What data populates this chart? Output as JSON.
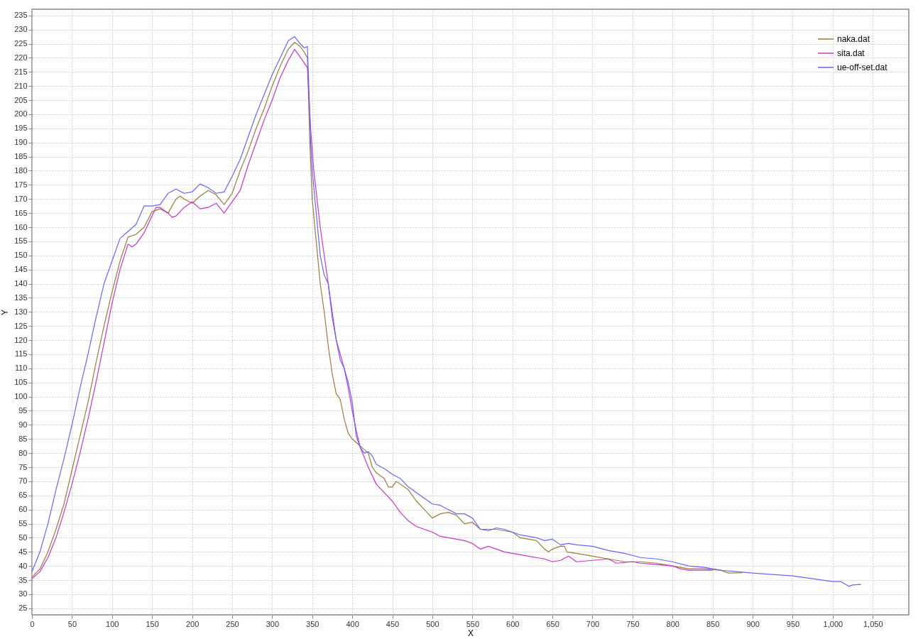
{
  "chart_data": {
    "type": "line",
    "xlabel": "X",
    "ylabel": "Y",
    "xlim": [
      0,
      1095
    ],
    "ylim": [
      22.7,
      237.2
    ],
    "xticks": [
      0,
      50,
      100,
      150,
      200,
      250,
      300,
      350,
      400,
      450,
      500,
      550,
      600,
      650,
      700,
      750,
      800,
      850,
      900,
      950,
      {
        "value": 1000,
        "label": "1,000"
      },
      {
        "value": 1050,
        "label": "1,050"
      }
    ],
    "yticks": [
      25,
      30,
      35,
      40,
      45,
      50,
      55,
      60,
      65,
      70,
      75,
      80,
      85,
      90,
      95,
      100,
      105,
      110,
      115,
      120,
      125,
      130,
      135,
      140,
      145,
      150,
      155,
      160,
      165,
      170,
      175,
      180,
      185,
      190,
      195,
      200,
      205,
      210,
      215,
      220,
      225,
      230,
      235
    ],
    "grid": true,
    "legend": "top right",
    "marker": "none",
    "line_style": "solid",
    "series": [
      {
        "name": "naka.dat",
        "color": "#9c7b3c",
        "x": [
          0,
          10,
          20,
          30,
          40,
          50,
          60,
          70,
          80,
          90,
          100,
          110,
          120,
          130,
          140,
          150,
          160,
          170,
          180,
          185,
          190,
          200,
          210,
          220,
          230,
          240,
          250,
          260,
          270,
          280,
          290,
          300,
          310,
          320,
          328,
          335,
          340,
          344,
          347,
          350,
          355,
          360,
          365,
          370,
          375,
          380,
          385,
          390,
          395,
          400,
          410,
          420,
          425,
          430,
          440,
          445,
          450,
          455,
          460,
          470,
          480,
          490,
          500,
          510,
          520,
          530,
          540,
          550,
          560,
          570,
          580,
          590,
          600,
          610,
          620,
          630,
          640,
          645,
          650,
          660,
          665,
          668,
          680,
          700,
          720,
          740,
          760,
          780,
          800,
          820,
          840,
          860,
          870,
          887
        ],
        "values": [
          36,
          39,
          45,
          53,
          62,
          74,
          86,
          98,
          112,
          125,
          137,
          148,
          156.5,
          157.5,
          160,
          165.5,
          166.5,
          165,
          170,
          171,
          170,
          168.5,
          171,
          173,
          171.5,
          168,
          172,
          180,
          187,
          195,
          202,
          210,
          217,
          223,
          225.5,
          224,
          222,
          220,
          190,
          170,
          155,
          140,
          130,
          118,
          108,
          101,
          99,
          92,
          87,
          85,
          82.5,
          80,
          75,
          73,
          71,
          68,
          68,
          70,
          69,
          67,
          63,
          60,
          57,
          58.5,
          59,
          58,
          55,
          55.5,
          53,
          53,
          53,
          52.5,
          52,
          50,
          49.5,
          49,
          46,
          45,
          46,
          47,
          47,
          45,
          44.5,
          43.5,
          42.5,
          41.5,
          41.5,
          41,
          40,
          39,
          39,
          38.5,
          37.5,
          37.6
        ]
      },
      {
        "name": "sita.dat",
        "color": "#cc33cc",
        "x": [
          0,
          10,
          20,
          30,
          40,
          50,
          60,
          70,
          80,
          90,
          100,
          110,
          120,
          125,
          130,
          140,
          150,
          155,
          160,
          170,
          175,
          180,
          190,
          200,
          210,
          220,
          230,
          240,
          250,
          260,
          270,
          280,
          290,
          300,
          310,
          320,
          328,
          333,
          338,
          344,
          348,
          352,
          356,
          360,
          365,
          370,
          375,
          380,
          385,
          390,
          395,
          400,
          405,
          410,
          420,
          430,
          440,
          450,
          460,
          470,
          480,
          490,
          500,
          510,
          520,
          530,
          540,
          550,
          560,
          570,
          580,
          590,
          600,
          620,
          640,
          650,
          660,
          670,
          680,
          700,
          720,
          730,
          750,
          760,
          780,
          800,
          810,
          820,
          850
        ],
        "values": [
          35.5,
          38,
          43,
          50,
          59,
          69,
          80,
          92,
          105,
          119,
          133,
          145,
          154,
          153,
          154,
          158,
          164,
          167,
          167,
          165,
          163.5,
          164,
          167,
          169,
          166.5,
          167,
          168.5,
          165,
          169,
          173,
          182,
          190,
          198,
          205,
          213,
          219,
          223,
          221,
          219,
          216.5,
          195,
          180,
          170,
          160,
          150,
          140,
          128,
          120,
          115,
          110,
          103,
          95,
          88,
          82,
          75,
          69,
          66,
          63,
          59,
          56,
          54,
          53,
          52,
          50.5,
          50,
          49.5,
          49,
          48,
          46,
          47,
          46,
          45,
          44.5,
          43.5,
          42.5,
          41.5,
          42,
          43.5,
          41.5,
          42,
          42.5,
          41,
          41.5,
          41,
          40.5,
          40,
          39,
          38.5,
          38.5
        ]
      },
      {
        "name": "ue-off-set.dat",
        "color": "#6666ff",
        "x": [
          0,
          10,
          20,
          30,
          40,
          50,
          60,
          70,
          80,
          90,
          100,
          110,
          120,
          130,
          140,
          150,
          160,
          170,
          180,
          190,
          200,
          210,
          220,
          230,
          240,
          250,
          260,
          270,
          280,
          290,
          300,
          310,
          320,
          328,
          335,
          340,
          344,
          346,
          348,
          350,
          355,
          360,
          365,
          370,
          375,
          380,
          385,
          390,
          395,
          400,
          405,
          410,
          415,
          420,
          425,
          430,
          440,
          450,
          460,
          470,
          480,
          490,
          500,
          510,
          520,
          530,
          540,
          550,
          560,
          570,
          580,
          590,
          600,
          610,
          620,
          630,
          640,
          650,
          660,
          670,
          680,
          700,
          720,
          740,
          760,
          780,
          800,
          820,
          840,
          860,
          880,
          900,
          950,
          1000,
          1010,
          1020,
          1025,
          1035
        ],
        "values": [
          38,
          45,
          55,
          67,
          78,
          90,
          103,
          115,
          128,
          140,
          148,
          156,
          158.5,
          161,
          167.5,
          167.5,
          168,
          172,
          173.5,
          172,
          172.5,
          175.3,
          174,
          172,
          172.5,
          178,
          184,
          192,
          200,
          207,
          214,
          220,
          226,
          227.5,
          225,
          223.5,
          224,
          208,
          190,
          180,
          165,
          150,
          143,
          140,
          130,
          120,
          113,
          110,
          105,
          98,
          86,
          82,
          80,
          80.5,
          79,
          76,
          74.5,
          72.5,
          71,
          68,
          66,
          64,
          62,
          61.5,
          60,
          58.5,
          58.5,
          57,
          53,
          52.5,
          53.5,
          53,
          52,
          51,
          50.5,
          50,
          49,
          49.5,
          47.5,
          48,
          47.5,
          47,
          45.5,
          44.5,
          43,
          42.5,
          41.5,
          40,
          39.5,
          38.5,
          38,
          37.5,
          36.5,
          34.5,
          34.5,
          32.8,
          33.3,
          33.5
        ]
      }
    ]
  }
}
